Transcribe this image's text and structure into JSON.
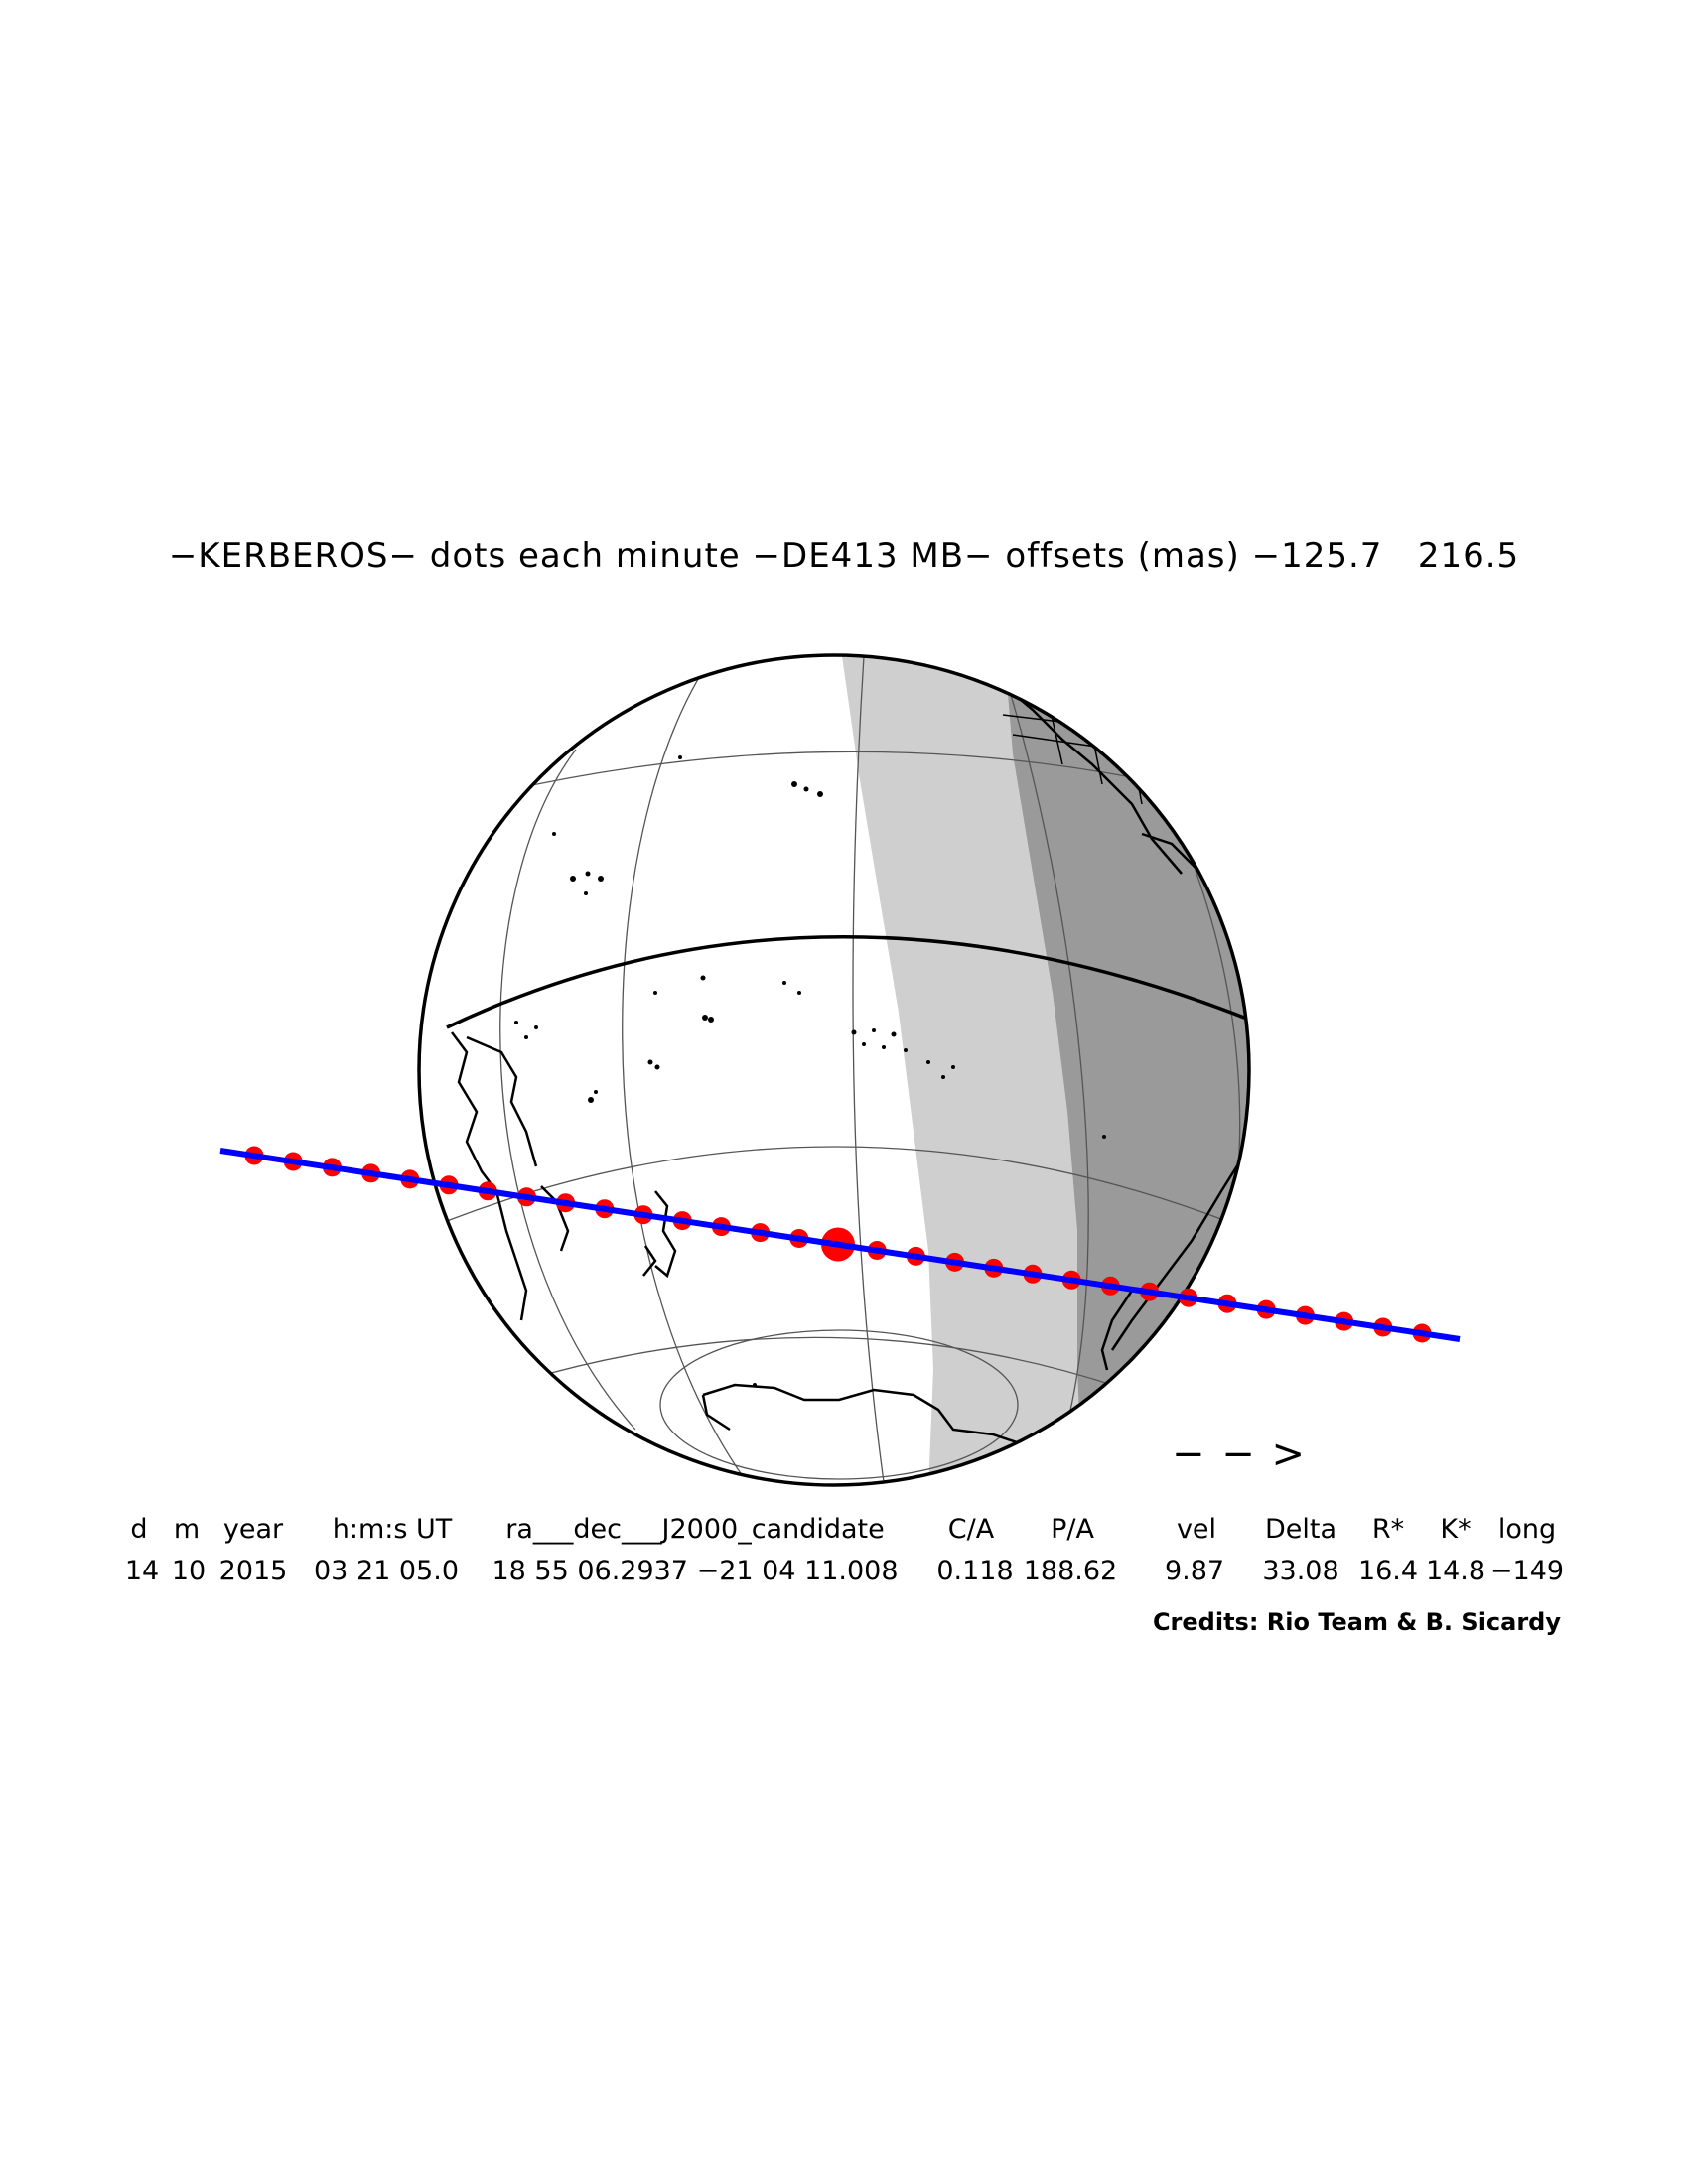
{
  "title": "−KERBEROS− dots each minute −DE413 MB− offsets (mas) −125.7   216.5",
  "direction_arrow": "− − >",
  "table": {
    "headers": [
      "d",
      "m",
      "year",
      "h:m:s UT",
      "ra___dec___J2000_candidate",
      "C/A",
      "P/A",
      "vel",
      "Delta",
      "R*",
      "K*",
      "long"
    ],
    "values": [
      "14",
      "10",
      "2015",
      "03 21 05.0",
      "18 55 06.2937 −21 04 11.008",
      "0.118",
      "188.62",
      "9.87",
      "33.08",
      "16.4",
      "14.8",
      "−149"
    ]
  },
  "credits": "Credits: Rio Team & B. Sicardy",
  "colors": {
    "path_line": "#0000ff",
    "time_dots": "#ff0000",
    "penumbra_shade": "#c8c8c8",
    "night_shade": "#969696",
    "outline": "#000000"
  },
  "globe": {
    "graticule": "latitude and longitude grid lines",
    "shadow_path_points": 31,
    "closest_approach_index": 15
  }
}
